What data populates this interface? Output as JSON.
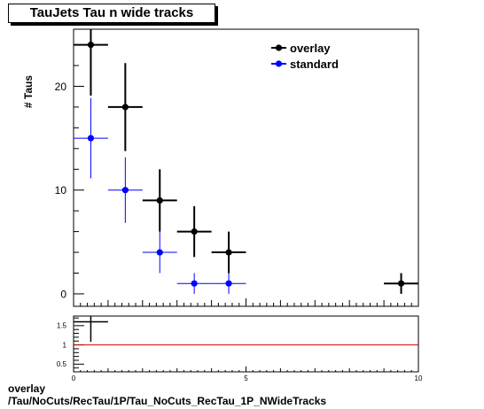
{
  "title": "TauJets Tau n wide tracks",
  "caption_line1": "overlay",
  "caption_line2": "/Tau/NoCuts/RecTau/1P/Tau_NoCuts_RecTau_1P_NWideTracks",
  "chart_data": [
    {
      "type": "scatter",
      "ylabel": "# Taus",
      "xlim": [
        0,
        10
      ],
      "ylim": [
        -1.2,
        25.5
      ],
      "yticks": [
        0,
        10,
        20
      ],
      "xtick_labels": [],
      "legend_position": "top-right",
      "series": [
        {
          "name": "overlay",
          "color": "#000000",
          "points": [
            {
              "x": 0.5,
              "y": 24,
              "xerr": 0.5,
              "yerr_lo": 4.9,
              "yerr_hi": 4.9
            },
            {
              "x": 1.5,
              "y": 18,
              "xerr": 0.5,
              "yerr_lo": 4.24,
              "yerr_hi": 4.24
            },
            {
              "x": 2.5,
              "y": 9,
              "xerr": 0.5,
              "yerr_lo": 3.0,
              "yerr_hi": 3.0
            },
            {
              "x": 3.5,
              "y": 6,
              "xerr": 0.5,
              "yerr_lo": 2.45,
              "yerr_hi": 2.45
            },
            {
              "x": 4.5,
              "y": 4,
              "xerr": 0.5,
              "yerr_lo": 2.0,
              "yerr_hi": 2.0
            },
            {
              "x": 9.5,
              "y": 1,
              "xerr": 0.5,
              "yerr_lo": 1.0,
              "yerr_hi": 1.0
            }
          ]
        },
        {
          "name": "standard",
          "color": "#0000ff",
          "points": [
            {
              "x": 0.5,
              "y": 15,
              "xerr": 0.5,
              "yerr_lo": 3.87,
              "yerr_hi": 3.87
            },
            {
              "x": 1.5,
              "y": 10,
              "xerr": 0.5,
              "yerr_lo": 3.16,
              "yerr_hi": 3.16
            },
            {
              "x": 2.5,
              "y": 4,
              "xerr": 0.5,
              "yerr_lo": 2.0,
              "yerr_hi": 2.0
            },
            {
              "x": 3.5,
              "y": 1,
              "xerr": 0.5,
              "yerr_lo": 1.0,
              "yerr_hi": 1.0
            },
            {
              "x": 4.5,
              "y": 1,
              "xerr": 0.5,
              "yerr_lo": 1.0,
              "yerr_hi": 1.0
            }
          ]
        }
      ]
    },
    {
      "type": "scatter",
      "xlim": [
        0,
        10
      ],
      "ylim": [
        0.3,
        1.75
      ],
      "yticks": [
        0.5,
        1,
        1.5
      ],
      "ytick_labels": [
        "0.5",
        "1",
        "1.5"
      ],
      "xticks": [
        0,
        5,
        10
      ],
      "xtick_labels": [
        "0",
        "5",
        "10"
      ],
      "reference_line": {
        "y": 1,
        "color": "#cc0000"
      },
      "series": [
        {
          "color": "#000000",
          "points": [
            {
              "x": 0.5,
              "y": 1.6,
              "xerr": 0.5,
              "yerr_lo": 0.52,
              "yerr_hi": 0.52
            }
          ]
        }
      ]
    }
  ]
}
